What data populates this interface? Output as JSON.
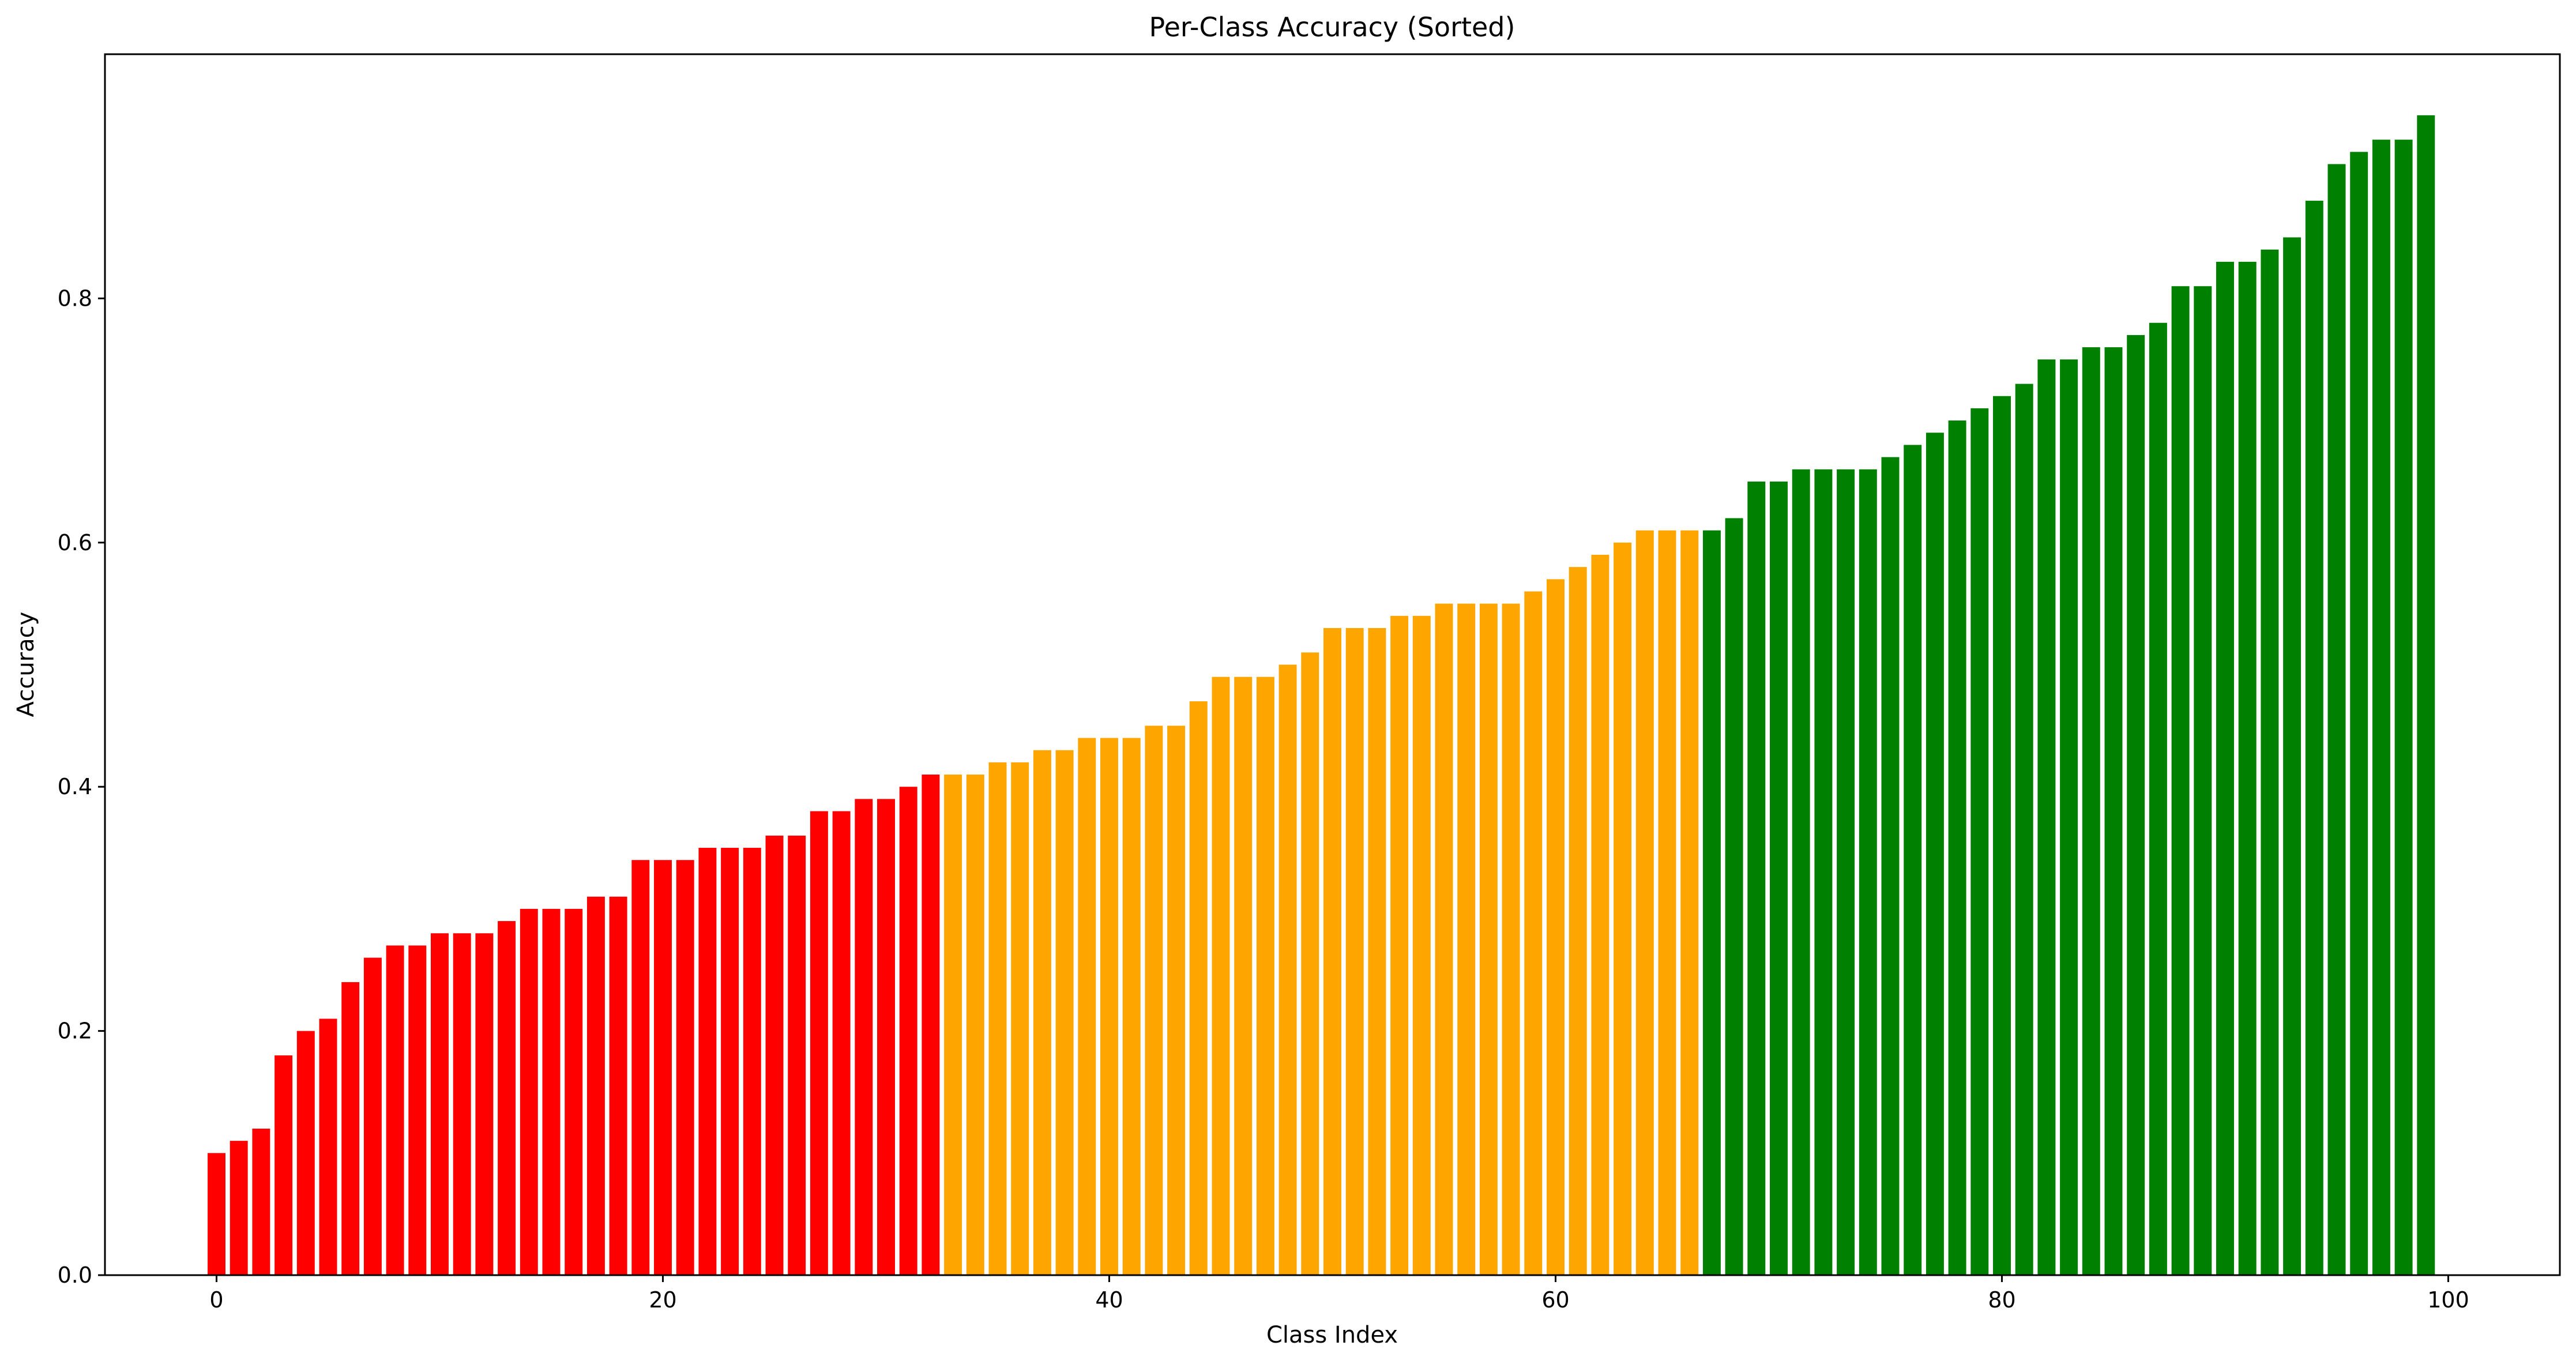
{
  "chart_data": {
    "type": "bar",
    "title": "Per-Class Accuracy (Sorted)",
    "xlabel": "Class Index",
    "ylabel": "Accuracy",
    "xlim": [
      -5,
      105
    ],
    "ylim": [
      0,
      1.0
    ],
    "xticks": [
      0,
      20,
      40,
      60,
      80,
      100
    ],
    "yticks": [
      0.0,
      0.2,
      0.4,
      0.6,
      0.8
    ],
    "xtick_labels": [
      "0",
      "20",
      "40",
      "60",
      "80",
      "100"
    ],
    "ytick_labels": [
      "0.0",
      "0.2",
      "0.4",
      "0.6",
      "0.8"
    ],
    "grid": false,
    "x": [
      0,
      1,
      2,
      3,
      4,
      5,
      6,
      7,
      8,
      9,
      10,
      11,
      12,
      13,
      14,
      15,
      16,
      17,
      18,
      19,
      20,
      21,
      22,
      23,
      24,
      25,
      26,
      27,
      28,
      29,
      30,
      31,
      32,
      33,
      34,
      35,
      36,
      37,
      38,
      39,
      40,
      41,
      42,
      43,
      44,
      45,
      46,
      47,
      48,
      49,
      50,
      51,
      52,
      53,
      54,
      55,
      56,
      57,
      58,
      59,
      60,
      61,
      62,
      63,
      64,
      65,
      66,
      67,
      68,
      69,
      70,
      71,
      72,
      73,
      74,
      75,
      76,
      77,
      78,
      79,
      80,
      81,
      82,
      83,
      84,
      85,
      86,
      87,
      88,
      89,
      90,
      91,
      92,
      93,
      94,
      95,
      96,
      97,
      98,
      99
    ],
    "values": [
      0.1,
      0.11,
      0.12,
      0.18,
      0.2,
      0.21,
      0.24,
      0.26,
      0.27,
      0.27,
      0.28,
      0.28,
      0.28,
      0.29,
      0.3,
      0.3,
      0.3,
      0.31,
      0.31,
      0.34,
      0.34,
      0.34,
      0.35,
      0.35,
      0.35,
      0.36,
      0.36,
      0.38,
      0.38,
      0.39,
      0.39,
      0.4,
      0.41,
      0.41,
      0.41,
      0.42,
      0.42,
      0.43,
      0.43,
      0.44,
      0.44,
      0.44,
      0.45,
      0.45,
      0.47,
      0.49,
      0.49,
      0.49,
      0.5,
      0.51,
      0.53,
      0.53,
      0.53,
      0.54,
      0.54,
      0.55,
      0.55,
      0.55,
      0.55,
      0.56,
      0.57,
      0.58,
      0.59,
      0.6,
      0.61,
      0.61,
      0.61,
      0.61,
      0.62,
      0.65,
      0.65,
      0.66,
      0.66,
      0.66,
      0.66,
      0.67,
      0.68,
      0.69,
      0.7,
      0.71,
      0.72,
      0.73,
      0.75,
      0.75,
      0.76,
      0.76,
      0.77,
      0.78,
      0.81,
      0.81,
      0.83,
      0.83,
      0.84,
      0.85,
      0.88,
      0.91,
      0.92,
      0.93,
      0.93,
      0.95
    ],
    "color_groups": [
      {
        "from": 0,
        "to": 32,
        "color": "#ff0000"
      },
      {
        "from": 33,
        "to": 66,
        "color": "#ffa500"
      },
      {
        "from": 67,
        "to": 99,
        "color": "#008000"
      }
    ],
    "colors": {
      "low": "#ff0000",
      "mid": "#ffa500",
      "high": "#008000",
      "axis": "#000000",
      "background": "#ffffff"
    }
  }
}
